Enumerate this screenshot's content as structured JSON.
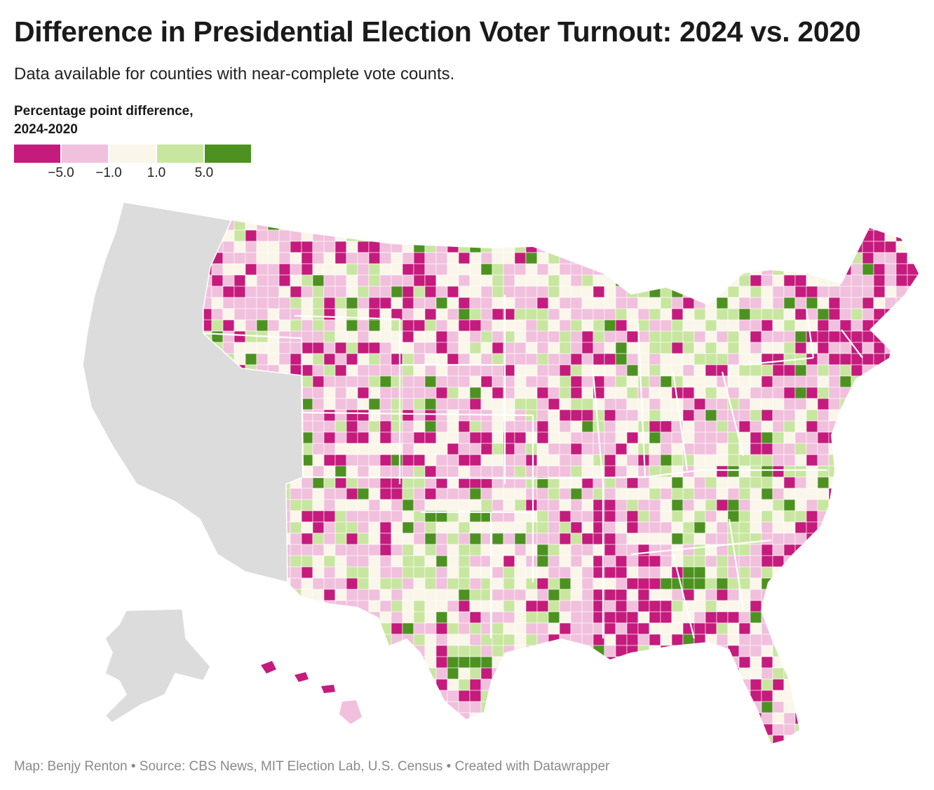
{
  "header": {
    "title": "Difference in Presidential Election Voter Turnout: 2024 vs. 2020",
    "subtitle": "Data available for counties with near-complete vote counts."
  },
  "legend": {
    "title_line1": "Percentage point difference,",
    "title_line2": "2024-2020",
    "bins": [
      {
        "range": "< -5.0",
        "color": "#c51b7d"
      },
      {
        "range": "-5.0 to -1.0",
        "color": "#f1c0dd"
      },
      {
        "range": "-1.0 to 1.0",
        "color": "#faf6ea"
      },
      {
        "range": "1.0 to 5.0",
        "color": "#c8e6a0"
      },
      {
        "range": "> 5.0",
        "color": "#4d9221"
      }
    ],
    "ticks": [
      "−5.0",
      "−1.0",
      "1.0",
      "5.0"
    ]
  },
  "map": {
    "subject": "US counties",
    "no_data_color": "#dcdcdc",
    "no_data_regions": [
      "Washington",
      "Oregon",
      "California",
      "Arizona",
      "Alaska"
    ]
  },
  "footer": {
    "text": "Map: Benjy Renton • Source: CBS News, MIT Election Lab, U.S. Census • Created with Datawrapper"
  }
}
